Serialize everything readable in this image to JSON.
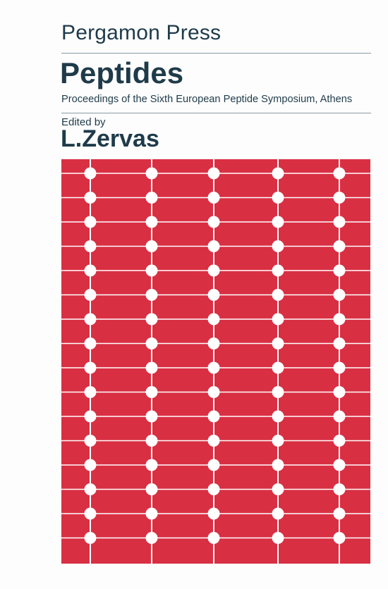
{
  "cover": {
    "publisher": "Pergamon Press",
    "title": "Peptides",
    "subtitle": "Proceedings of the Sixth European Peptide Symposium, Athens",
    "edited_by_label": "Edited by",
    "editor": "L.Zervas"
  },
  "artwork": {
    "description_icon": "peptide-chain-pattern",
    "background_color": "#d92f43",
    "line_color": "#ffffff"
  }
}
